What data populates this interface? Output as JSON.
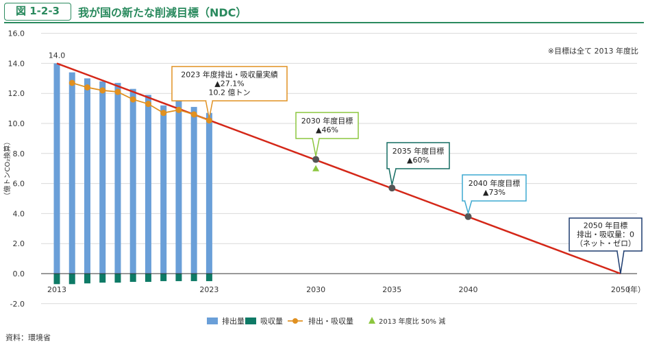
{
  "figure": {
    "label": "図 1-2-3",
    "title": "我が国の新たな削減目標（NDC）",
    "source": "資料：環境省"
  },
  "chart_data": {
    "type": "bar",
    "note": "※目標は全て 2013 年度比",
    "ylabel": "（億トンCO₂換算）",
    "xunit": "（年）",
    "ylim": [
      -2,
      16
    ],
    "yticks": [
      "16.0",
      "14.0",
      "12.0",
      "10.0",
      "8.0",
      "6.0",
      "4.0",
      "2.0",
      "0.0",
      "-2.0"
    ],
    "xlim": [
      2013,
      2050
    ],
    "xticks": [
      "2013",
      "2023",
      "2030",
      "2035",
      "2040",
      "2050"
    ],
    "bar_years": [
      2013,
      2014,
      2015,
      2016,
      2017,
      2018,
      2019,
      2020,
      2021,
      2022,
      2023
    ],
    "series": [
      {
        "name": "排出量",
        "color": "#6a9fd8",
        "values": [
          14.0,
          13.4,
          13.0,
          12.8,
          12.7,
          12.3,
          11.9,
          11.2,
          11.5,
          11.1,
          10.7
        ]
      },
      {
        "name": "吸収量",
        "color": "#0e7a66",
        "values": [
          -0.7,
          -0.7,
          -0.65,
          -0.6,
          -0.6,
          -0.55,
          -0.55,
          -0.5,
          -0.5,
          -0.5,
          -0.5
        ]
      },
      {
        "name": "排出・吸収量",
        "color": "#e09020",
        "values": [
          null,
          12.7,
          12.4,
          12.2,
          12.1,
          11.6,
          11.3,
          10.7,
          10.9,
          10.6,
          10.2
        ]
      }
    ],
    "target_line": {
      "color": "#d42718",
      "from": [
        2013,
        14.0
      ],
      "to": [
        2050,
        0
      ]
    },
    "half_point": {
      "name": "2013 年度比 50% 減",
      "year": 2030,
      "value": 7.0,
      "color": "#8cc63f"
    },
    "value_label_2013": "14.0",
    "targets": [
      {
        "year": 2030,
        "value": 7.6,
        "label1": "2030 年度目標",
        "label2": "▲46%",
        "color": "#8cc63f"
      },
      {
        "year": 2035,
        "value": 5.7,
        "label1": "2035 年度目標",
        "label2": "▲60%",
        "color": "#126b61"
      },
      {
        "year": 2040,
        "value": 3.8,
        "label1": "2040 年度目標",
        "label2": "▲73%",
        "color": "#3ba8d0"
      },
      {
        "year": 2050,
        "value": 0,
        "label1": "2050 年目標",
        "label2": "排出・吸収量：0",
        "label3": "（ネット・ゼロ）",
        "color": "#1b3a6e"
      }
    ],
    "callout_2023": {
      "line1": "2023 年度排出・吸収量実績",
      "line2": "▲27.1%",
      "line3": "10.2 億トン",
      "color": "#e09020"
    },
    "legend": [
      "排出量",
      "吸収量",
      "排出・吸収量",
      "2013 年度比 50% 減"
    ]
  }
}
